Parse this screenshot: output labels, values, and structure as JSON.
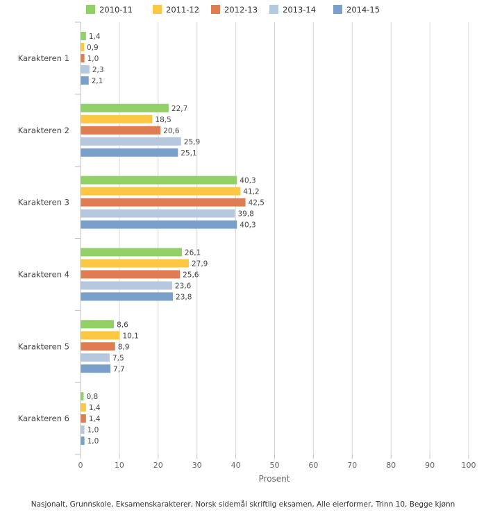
{
  "chart_data": {
    "type": "bar",
    "orientation": "horizontal",
    "categories": [
      "Karakteren 1",
      "Karakteren 2",
      "Karakteren 3",
      "Karakteren 4",
      "Karakteren 5",
      "Karakteren 6"
    ],
    "series": [
      {
        "name": "2010-11",
        "color": "#90d066",
        "values": [
          1.4,
          22.7,
          40.3,
          26.1,
          8.6,
          0.8
        ],
        "labels": [
          "1,4",
          "22,7",
          "40,3",
          "26,1",
          "8,6",
          "0,8"
        ]
      },
      {
        "name": "2011-12",
        "color": "#fcc844",
        "values": [
          0.9,
          18.5,
          41.2,
          27.9,
          10.1,
          1.4
        ],
        "labels": [
          "0,9",
          "18,5",
          "41,2",
          "27,9",
          "10,1",
          "1,4"
        ]
      },
      {
        "name": "2012-13",
        "color": "#e07c51",
        "values": [
          1.0,
          20.6,
          42.5,
          25.6,
          8.9,
          1.4
        ],
        "labels": [
          "1,0",
          "20,6",
          "42,5",
          "25,6",
          "8,9",
          "1,4"
        ]
      },
      {
        "name": "2013-14",
        "color": "#b5c8de",
        "values": [
          2.3,
          25.9,
          39.8,
          23.6,
          7.5,
          1.0
        ],
        "labels": [
          "2,3",
          "25,9",
          "39,8",
          "23,6",
          "7,5",
          "1,0"
        ]
      },
      {
        "name": "2014-15",
        "color": "#7a9fc9",
        "values": [
          2.1,
          25.1,
          40.3,
          23.8,
          7.7,
          1.0
        ],
        "labels": [
          "2,1",
          "25,1",
          "40,3",
          "23,8",
          "7,7",
          "1,0"
        ]
      }
    ],
    "xlabel": "Prosent",
    "ylabel": "",
    "xlim": [
      0,
      100
    ],
    "xticks": [
      0,
      10,
      20,
      30,
      40,
      50,
      60,
      70,
      80,
      90,
      100
    ],
    "grid": true,
    "legend_position": "top"
  },
  "caption": "Nasjonalt, Grunnskole, Eksamenskarakterer, Norsk sidemål skriftlig eksamen, Alle eierformer, Trinn 10, Begge kjønn"
}
